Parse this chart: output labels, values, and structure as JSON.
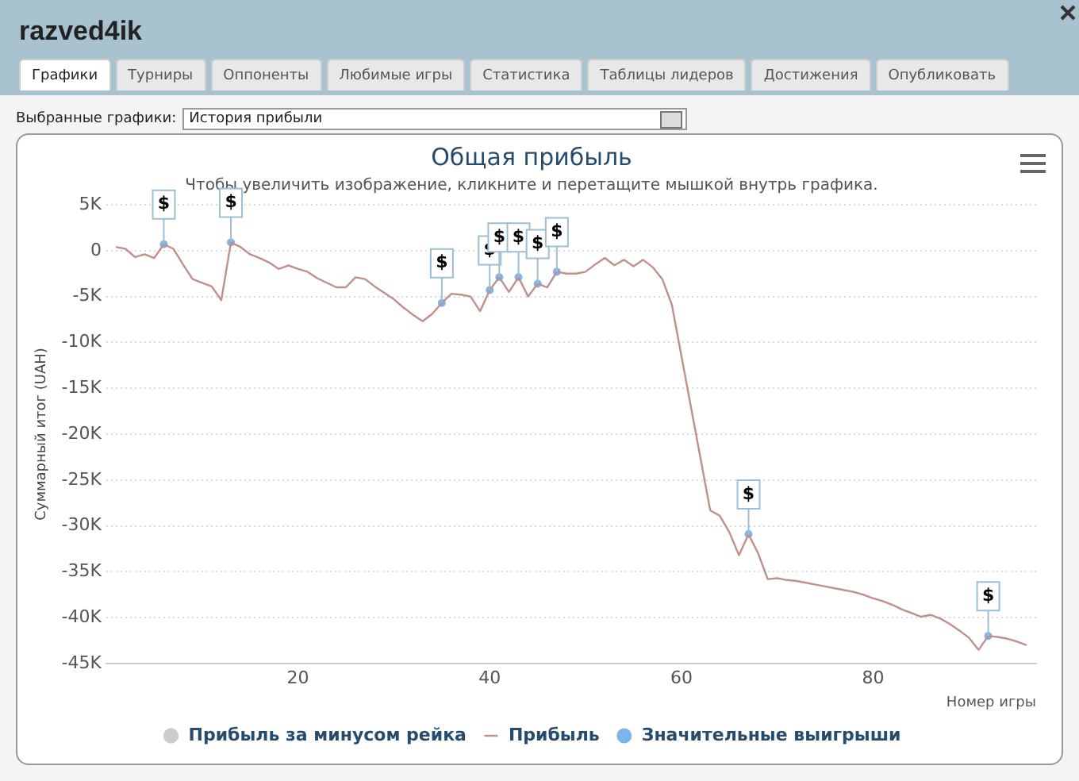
{
  "chart_data": {
    "type": "line",
    "title": "Общая прибыль",
    "subtitle": "Чтобы увеличить изображение, кликните и перетащите мышкой внутрь графика.",
    "xlabel": "Номер игры",
    "ylabel": "Суммарный итог (UAH)",
    "annotations": [
      "razved4ik",
      "Графики",
      "Турниры",
      "Оппоненты",
      "Любимые игры",
      "Статистика",
      "Таблицы лидеров",
      "Достижения",
      "Опубликовать",
      "Выбранные графики:",
      "История прибыли"
    ],
    "xlim": [
      0,
      97
    ],
    "xticks": [
      20,
      40,
      60,
      80
    ],
    "ylim": [
      -45000,
      5000
    ],
    "yticks": [
      {
        "value": 5000,
        "label": "5K"
      },
      {
        "value": 0,
        "label": "0"
      },
      {
        "value": -5000,
        "label": "-5K"
      },
      {
        "value": -10000,
        "label": "-10K"
      },
      {
        "value": -15000,
        "label": "-15K"
      },
      {
        "value": -20000,
        "label": "-20K"
      },
      {
        "value": -25000,
        "label": "-25K"
      },
      {
        "value": -30000,
        "label": "-30K"
      },
      {
        "value": -35000,
        "label": "-35K"
      },
      {
        "value": -40000,
        "label": "-40K"
      },
      {
        "value": -45000,
        "label": "-45K"
      }
    ],
    "grid": "y",
    "legend": "bottom",
    "line_style": "solid",
    "x": [
      1,
      2,
      3,
      4,
      5,
      6,
      7,
      8,
      9,
      10,
      11,
      12,
      13,
      14,
      15,
      16,
      17,
      18,
      19,
      20,
      21,
      22,
      23,
      24,
      25,
      26,
      27,
      28,
      29,
      30,
      31,
      32,
      33,
      34,
      35,
      36,
      37,
      38,
      39,
      40,
      41,
      42,
      43,
      44,
      45,
      46,
      47,
      48,
      49,
      50,
      51,
      52,
      53,
      54,
      55,
      56,
      57,
      58,
      59,
      60,
      61,
      62,
      63,
      64,
      65,
      66,
      67,
      68,
      69,
      70,
      71,
      72,
      73,
      74,
      75,
      76,
      77,
      78,
      79,
      80,
      81,
      82,
      83,
      84,
      85,
      86,
      87,
      88,
      89,
      90,
      91,
      92,
      93,
      94,
      95,
      96
    ],
    "series": [
      {
        "name": "Прибыль за минусом рейка",
        "color": "#cccccc",
        "values": [
          null,
          null,
          null,
          null,
          null,
          null,
          null,
          null,
          null,
          null,
          null,
          null,
          null,
          null,
          null,
          null,
          null,
          null,
          null,
          null,
          null,
          null,
          null,
          null,
          null,
          null,
          null,
          null,
          null,
          null,
          null,
          null,
          null,
          null,
          null,
          null,
          null,
          null,
          null,
          null,
          null,
          null,
          null,
          null,
          null,
          null,
          null,
          null,
          null,
          null,
          null,
          null,
          null,
          null,
          null,
          null,
          null,
          null,
          null,
          null,
          null,
          null,
          null,
          null,
          null,
          null,
          null,
          null,
          null,
          null,
          null,
          null,
          null,
          null,
          null,
          null,
          null,
          null,
          null,
          null,
          null,
          null,
          null,
          null,
          null,
          null,
          null,
          null,
          null,
          null,
          null,
          null,
          null,
          null,
          null,
          null
        ]
      },
      {
        "name": "Прибыль",
        "color": "#c0908c",
        "marker": "none",
        "values": [
          400,
          200,
          -700,
          -400,
          -800,
          700,
          200,
          -1500,
          -3100,
          -3500,
          -3900,
          -5400,
          900,
          400,
          -400,
          -800,
          -1300,
          -2000,
          -1600,
          -2000,
          -2300,
          -3000,
          -3500,
          -4000,
          -4000,
          -2900,
          -3100,
          -3900,
          -4600,
          -5300,
          -6200,
          -7000,
          -7700,
          -6900,
          -5700,
          -4700,
          -4800,
          -5000,
          -6600,
          -4300,
          -2900,
          -4500,
          -2900,
          -5000,
          -3600,
          -4000,
          -2300,
          -2500,
          -2500,
          -2300,
          -1500,
          -800,
          -1600,
          -1000,
          -1700,
          -1000,
          -1800,
          -3100,
          -5900,
          -11500,
          -17100,
          -22700,
          -28300,
          -28900,
          -30700,
          -33200,
          -30900,
          -33000,
          -35800,
          -35700,
          -35900,
          -36000,
          -36200,
          -36400,
          -36600,
          -36800,
          -37000,
          -37200,
          -37500,
          -37900,
          -38200,
          -38600,
          -39100,
          -39500,
          -39900,
          -39700,
          -40100,
          -40700,
          -41400,
          -42200,
          -43500,
          -42000,
          -42100,
          -42300,
          -42600,
          -43000
        ]
      },
      {
        "name": "Значительные выигрыши",
        "type": "scatter",
        "color": "#7cb5ec",
        "marker": "circle",
        "x": [
          6,
          13,
          35,
          40,
          41,
          43,
          45,
          47,
          67,
          92
        ],
        "values": [
          700,
          900,
          -5700,
          -4300,
          -2900,
          -2900,
          -3600,
          -2300,
          -30900,
          -42000
        ],
        "value_labels": [
          "$",
          "$",
          "$",
          "$",
          "$",
          "$",
          "$",
          "$",
          "$",
          "$"
        ]
      }
    ]
  }
}
